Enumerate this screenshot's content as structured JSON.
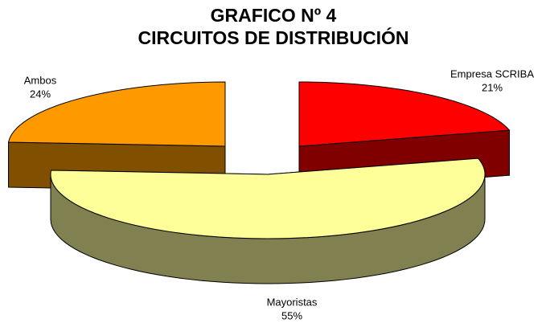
{
  "chart_data": {
    "type": "pie3d",
    "title": "GRAFICO Nº 4",
    "subtitle": "CIRCUITOS DE DISTRIBUCIÓN",
    "categories": [
      "Empresa SCRIBA",
      "Mayoristas",
      "Ambos"
    ],
    "values": [
      21,
      55,
      24
    ],
    "value_labels": [
      "21%",
      "55%",
      "24%"
    ],
    "colors": [
      "#ff0000",
      "#ffff99",
      "#ff9900"
    ],
    "side_colors": [
      "#800000",
      "#808050",
      "#805000"
    ]
  }
}
